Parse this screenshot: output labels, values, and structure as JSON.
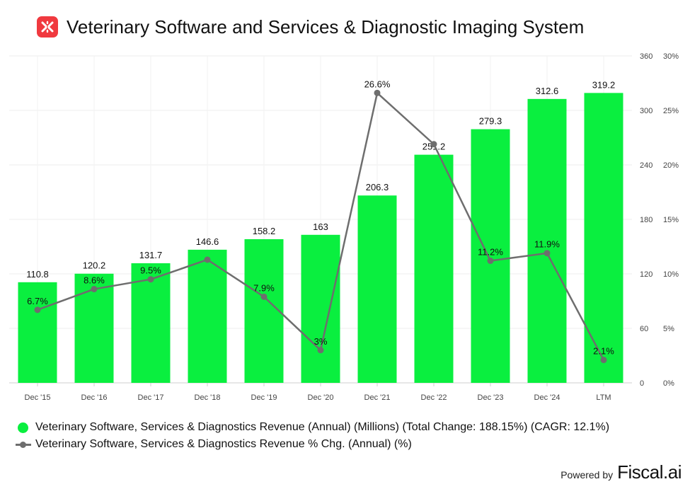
{
  "header": {
    "title": "Veterinary Software and Services & Diagnostic Imaging System"
  },
  "colors": {
    "bar": "#0aef3f",
    "line": "#6e6e6e",
    "logo": "#f0393f",
    "grid": "#ececec",
    "axis_text": "#444444"
  },
  "chart_data": {
    "type": "bar+line",
    "categories": [
      "Dec '15",
      "Dec '16",
      "Dec '17",
      "Dec '18",
      "Dec '19",
      "Dec '20",
      "Dec '21",
      "Dec '22",
      "Dec '23",
      "Dec '24",
      "LTM"
    ],
    "series": [
      {
        "name": "Veterinary Software, Services & Diagnostics Revenue (Annual) (Millions) (Total Change: 188.15%) (CAGR: 12.1%)",
        "type": "bar",
        "axis": "left",
        "values": [
          110.8,
          120.2,
          131.7,
          146.6,
          158.2,
          163,
          206.3,
          251.2,
          279.3,
          312.6,
          319.2
        ],
        "labels": [
          "110.8",
          "120.2",
          "131.7",
          "146.6",
          "158.2",
          "163",
          "206.3",
          "251.2",
          "279.3",
          "312.6",
          "319.2"
        ]
      },
      {
        "name": "Veterinary Software, Services & Diagnostics Revenue % Chg. (Annual) (%)",
        "type": "line",
        "axis": "right",
        "values": [
          6.7,
          8.6,
          9.5,
          11.3,
          7.9,
          3,
          26.6,
          21.9,
          11.2,
          11.9,
          2.1
        ],
        "labels": [
          "6.7%",
          "8.6%",
          "9.5%",
          "",
          "7.9%",
          "3%",
          "26.6%",
          "",
          "11.2%",
          "11.9%",
          "2.1%"
        ]
      }
    ],
    "y_left": {
      "range": [
        0,
        360
      ],
      "ticks": [
        "0",
        "60",
        "120",
        "180",
        "240",
        "300",
        "360"
      ],
      "tick_values": [
        0,
        60,
        120,
        180,
        240,
        300,
        360
      ]
    },
    "y_right": {
      "range": [
        0,
        30
      ],
      "ticks": [
        "0%",
        "5%",
        "10%",
        "15%",
        "20%",
        "25%",
        "30%"
      ],
      "tick_values": [
        0,
        5,
        10,
        15,
        20,
        25,
        30
      ]
    },
    "grid": true,
    "legend_position": "bottom-left"
  },
  "legend": {
    "bar_label": "Veterinary Software, Services & Diagnostics Revenue (Annual) (Millions) (Total Change: 188.15%) (CAGR: 12.1%)",
    "line_label": "Veterinary Software, Services & Diagnostics Revenue % Chg. (Annual) (%)"
  },
  "footer": {
    "powered_by": "Powered by",
    "brand": "Fiscal.ai"
  }
}
